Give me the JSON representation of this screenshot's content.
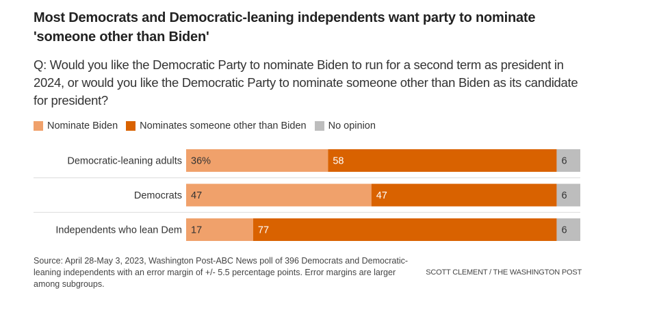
{
  "title": "Most Democrats and Democratic-leaning independents want party to nominate 'someone other than Biden'",
  "subtitle": "Q: Would you like the Democratic Party to nominate Biden to run for a second term as president in 2024, or would you like the Democratic Party to nominate someone other than Biden as its candidate for president?",
  "footer": {
    "source": "Source: April 28-May 3, 2023, Washington Post-ABC News poll of 396 Democrats and Democratic-leaning independents with an error margin of +/- 5.5 percentage points. Error margins are larger among subgroups.",
    "credit": "SCOTT CLEMENT / THE WASHINGTON POST"
  },
  "chart_data": {
    "type": "bar",
    "orientation": "horizontal",
    "stacked": true,
    "title": "Most Democrats and Democratic-leaning independents want party to nominate 'someone other than Biden'",
    "xlabel": "",
    "ylabel": "",
    "xlim": [
      0,
      100
    ],
    "grid": false,
    "legend_position": "top-left",
    "categories": [
      "Democratic-leaning adults",
      "Democrats",
      "Independents who lean Dem"
    ],
    "series": [
      {
        "name": "Nominate Biden",
        "color": "#f0a16b",
        "label_color": "#333333",
        "values": [
          36,
          47,
          17
        ],
        "labels": [
          "36%",
          "47",
          "17"
        ]
      },
      {
        "name": "Nominates someone other than Biden",
        "color": "#d96200",
        "label_color": "#ffffff",
        "values": [
          58,
          47,
          77
        ],
        "labels": [
          "58",
          "47",
          "77"
        ]
      },
      {
        "name": "No opinion",
        "color": "#bdbdbd",
        "label_color": "#333333",
        "values": [
          6,
          6,
          6
        ],
        "labels": [
          "6",
          "6",
          "6"
        ]
      }
    ]
  }
}
